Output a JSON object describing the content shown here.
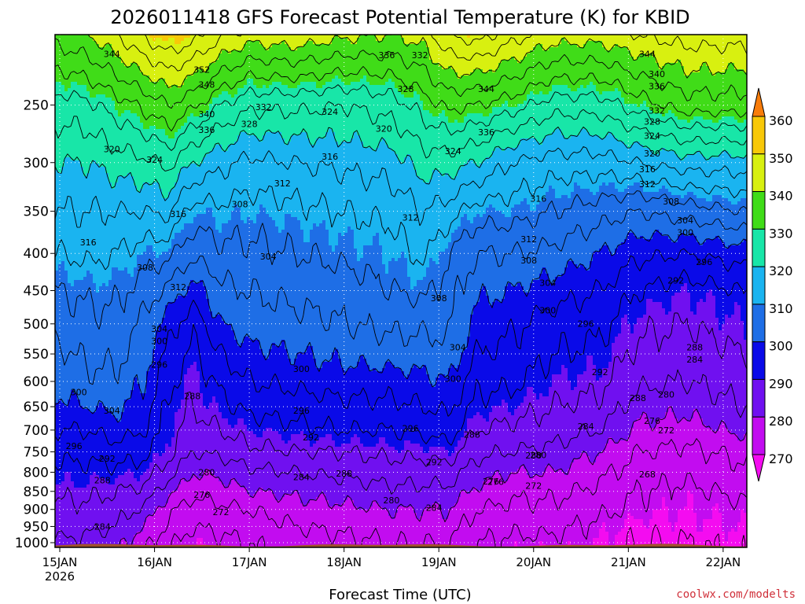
{
  "chart_data": {
    "type": "heatmap",
    "title": "2026011418 GFS Forecast Potential Temperature (K) for KBID",
    "xlabel": "Forecast Time (UTC)",
    "ylabel": "",
    "credit": "coolwx.com/modelts",
    "x_ticks": [
      "15JAN",
      "16JAN",
      "17JAN",
      "18JAN",
      "19JAN",
      "20JAN",
      "21JAN",
      "22JAN"
    ],
    "x_tick_year": "2026",
    "x_range_days": [
      -0.05,
      7.25
    ],
    "y_scale": "log",
    "y_ticks": [
      "250",
      "300",
      "350",
      "400",
      "450",
      "500",
      "550",
      "600",
      "650",
      "700",
      "750",
      "800",
      "850",
      "900",
      "950",
      "1000"
    ],
    "y_range_hpa": [
      1015,
      200
    ],
    "grid": "dotted",
    "colorbar": {
      "levels": [
        270,
        280,
        290,
        300,
        310,
        320,
        330,
        340,
        350,
        360
      ],
      "tick_labels": [
        "360",
        "350",
        "340",
        "330",
        "320",
        "310",
        "300",
        "290",
        "280",
        "270"
      ],
      "bands": [
        {
          "min": 260,
          "max": 270,
          "color": "#f40cf0"
        },
        {
          "min": 270,
          "max": 280,
          "color": "#c20cf0"
        },
        {
          "min": 280,
          "max": 290,
          "color": "#7010f0"
        },
        {
          "min": 290,
          "max": 300,
          "color": "#0a0ae8"
        },
        {
          "min": 300,
          "max": 310,
          "color": "#1e6ee6"
        },
        {
          "min": 310,
          "max": 320,
          "color": "#1ab4f0"
        },
        {
          "min": 320,
          "max": 330,
          "color": "#18e6a8"
        },
        {
          "min": 330,
          "max": 340,
          "color": "#40dc18"
        },
        {
          "min": 340,
          "max": 350,
          "color": "#d8f010"
        },
        {
          "min": 350,
          "max": 360,
          "color": "#f8c808"
        },
        {
          "min": 360,
          "max": 370,
          "color": "#f87c0a"
        }
      ]
    },
    "ground_color": "#a0522d",
    "theta_profile_levels_hpa": [
      1000,
      950,
      900,
      850,
      800,
      750,
      700,
      650,
      600,
      550,
      500,
      450,
      400,
      350,
      300,
      250,
      200
    ],
    "theta_profiles": [
      {
        "day": 0.0,
        "theta": [
          283,
          286,
          287,
          289,
          291,
          293,
          296,
          299,
          301,
          303,
          306,
          308,
          312,
          316,
          320,
          326,
          338
        ]
      },
      {
        "day": 0.3,
        "theta": [
          283,
          285,
          287,
          289,
          291,
          293,
          296,
          300,
          303,
          305,
          307,
          309,
          313,
          316,
          320,
          327,
          340
        ]
      },
      {
        "day": 0.6,
        "theta": [
          281,
          284,
          286,
          288,
          291,
          294,
          298,
          301,
          303,
          305,
          307,
          309,
          312,
          316,
          322,
          330,
          344
        ]
      },
      {
        "day": 0.9,
        "theta": [
          277,
          280,
          283,
          287,
          290,
          293,
          296,
          298,
          300,
          301,
          303,
          306,
          310,
          316,
          323,
          333,
          349
        ]
      },
      {
        "day": 1.15,
        "theta": [
          273,
          275,
          277,
          281,
          286,
          289,
          290,
          291,
          293,
          295,
          298,
          303,
          309,
          317,
          325,
          336,
          352
        ]
      },
      {
        "day": 1.4,
        "theta": [
          270,
          272,
          274,
          277,
          280,
          284,
          286,
          288,
          289,
          291,
          293,
          298,
          305,
          310,
          320,
          333,
          350
        ]
      },
      {
        "day": 1.7,
        "theta": [
          271,
          273,
          275,
          278,
          281,
          285,
          288,
          291,
          293,
          296,
          300,
          303,
          307,
          311,
          317,
          328,
          345
        ]
      },
      {
        "day": 2.0,
        "theta": [
          272,
          274,
          276,
          280,
          283,
          287,
          290,
          293,
          296,
          299,
          302,
          304,
          307,
          310,
          315,
          325,
          342
        ]
      },
      {
        "day": 2.5,
        "theta": [
          274,
          276,
          278,
          281,
          284,
          288,
          291,
          294,
          297,
          300,
          303,
          305,
          308,
          311,
          316,
          325,
          343
        ]
      },
      {
        "day": 3.0,
        "theta": [
          275,
          277,
          279,
          282,
          285,
          288,
          292,
          295,
          298,
          301,
          304,
          306,
          309,
          312,
          317,
          324,
          341
        ]
      },
      {
        "day": 3.5,
        "theta": [
          276,
          278,
          280,
          283,
          286,
          289,
          292,
          295,
          298,
          302,
          305,
          308,
          310,
          313,
          318,
          326,
          340
        ]
      },
      {
        "day": 3.85,
        "theta": [
          276,
          278,
          280,
          283,
          286,
          289,
          293,
          296,
          299,
          302,
          305,
          309,
          313,
          316,
          322,
          330,
          342
        ]
      },
      {
        "day": 4.1,
        "theta": [
          276,
          278,
          280,
          283,
          286,
          290,
          294,
          297,
          300,
          303,
          305,
          306,
          308,
          314,
          322,
          333,
          348
        ]
      },
      {
        "day": 4.4,
        "theta": [
          272,
          274,
          276,
          279,
          282,
          285,
          288,
          291,
          293,
          296,
          298,
          301,
          304,
          310,
          320,
          332,
          350
        ]
      },
      {
        "day": 4.75,
        "theta": [
          271,
          273,
          275,
          277,
          280,
          284,
          287,
          290,
          293,
          295,
          297,
          300,
          304,
          310,
          316,
          330,
          346
        ]
      },
      {
        "day": 5.2,
        "theta": [
          271,
          273,
          275,
          277,
          280,
          283,
          286,
          288,
          290,
          292,
          294,
          298,
          303,
          308,
          314,
          326,
          342
        ]
      },
      {
        "day": 5.7,
        "theta": [
          270,
          271,
          273,
          275,
          277,
          280,
          284,
          287,
          289,
          291,
          293,
          296,
          300,
          306,
          314,
          326,
          342
        ]
      },
      {
        "day": 6.1,
        "theta": [
          268,
          269,
          271,
          272,
          274,
          276,
          279,
          282,
          285,
          287,
          289,
          292,
          297,
          304,
          316,
          330,
          344
        ]
      },
      {
        "day": 6.6,
        "theta": [
          268,
          269,
          270,
          271,
          273,
          275,
          278,
          281,
          284,
          286,
          288,
          290,
          296,
          306,
          318,
          334,
          346
        ]
      },
      {
        "day": 7.2,
        "theta": [
          269,
          270,
          271,
          273,
          275,
          277,
          281,
          284,
          286,
          288,
          290,
          292,
          298,
          308,
          318,
          334,
          346
        ]
      }
    ],
    "contour_labels": [
      {
        "text": "344",
        "day": 0.55,
        "hpa": 213
      },
      {
        "text": "352",
        "day": 1.5,
        "hpa": 224
      },
      {
        "text": "348",
        "day": 1.55,
        "hpa": 235
      },
      {
        "text": "340",
        "day": 1.55,
        "hpa": 258
      },
      {
        "text": "336",
        "day": 1.55,
        "hpa": 271
      },
      {
        "text": "332",
        "day": 2.15,
        "hpa": 252
      },
      {
        "text": "328",
        "day": 2.0,
        "hpa": 266
      },
      {
        "text": "324",
        "day": 2.85,
        "hpa": 256
      },
      {
        "text": "336",
        "day": 3.45,
        "hpa": 214
      },
      {
        "text": "332",
        "day": 3.8,
        "hpa": 214
      },
      {
        "text": "328",
        "day": 3.65,
        "hpa": 238
      },
      {
        "text": "320",
        "day": 3.42,
        "hpa": 270
      },
      {
        "text": "316",
        "day": 2.85,
        "hpa": 295
      },
      {
        "text": "312",
        "day": 2.35,
        "hpa": 321
      },
      {
        "text": "308",
        "day": 1.9,
        "hpa": 343
      },
      {
        "text": "304",
        "day": 2.2,
        "hpa": 405
      },
      {
        "text": "312",
        "day": 3.7,
        "hpa": 358
      },
      {
        "text": "344",
        "day": 4.5,
        "hpa": 238
      },
      {
        "text": "336",
        "day": 4.5,
        "hpa": 273
      },
      {
        "text": "324",
        "day": 4.15,
        "hpa": 290
      },
      {
        "text": "316",
        "day": 5.05,
        "hpa": 337
      },
      {
        "text": "312",
        "day": 4.95,
        "hpa": 383
      },
      {
        "text": "308",
        "day": 4.95,
        "hpa": 410
      },
      {
        "text": "304",
        "day": 5.15,
        "hpa": 440
      },
      {
        "text": "300",
        "day": 5.15,
        "hpa": 480
      },
      {
        "text": "296",
        "day": 5.55,
        "hpa": 501
      },
      {
        "text": "292",
        "day": 5.7,
        "hpa": 584
      },
      {
        "text": "288",
        "day": 6.1,
        "hpa": 634
      },
      {
        "text": "284",
        "day": 5.55,
        "hpa": 693
      },
      {
        "text": "280",
        "day": 5.05,
        "hpa": 759
      },
      {
        "text": "276",
        "day": 4.55,
        "hpa": 825
      },
      {
        "text": "272",
        "day": 5.0,
        "hpa": 837
      },
      {
        "text": "268",
        "day": 6.2,
        "hpa": 807
      },
      {
        "text": "280",
        "day": 6.4,
        "hpa": 627
      },
      {
        "text": "276",
        "day": 6.25,
        "hpa": 681
      },
      {
        "text": "272",
        "day": 6.4,
        "hpa": 702
      },
      {
        "text": "284",
        "day": 6.7,
        "hpa": 561
      },
      {
        "text": "288",
        "day": 6.7,
        "hpa": 540
      },
      {
        "text": "292",
        "day": 6.5,
        "hpa": 437
      },
      {
        "text": "296",
        "day": 6.8,
        "hpa": 412
      },
      {
        "text": "300",
        "day": 6.6,
        "hpa": 375
      },
      {
        "text": "304",
        "day": 6.6,
        "hpa": 361
      },
      {
        "text": "308",
        "day": 6.45,
        "hpa": 340
      },
      {
        "text": "312",
        "day": 6.2,
        "hpa": 322
      },
      {
        "text": "316",
        "day": 6.2,
        "hpa": 307
      },
      {
        "text": "320",
        "day": 6.25,
        "hpa": 292
      },
      {
        "text": "324",
        "day": 6.25,
        "hpa": 276
      },
      {
        "text": "328",
        "day": 6.25,
        "hpa": 264
      },
      {
        "text": "332",
        "day": 6.3,
        "hpa": 255
      },
      {
        "text": "336",
        "day": 6.3,
        "hpa": 236
      },
      {
        "text": "340",
        "day": 6.3,
        "hpa": 227
      },
      {
        "text": "344",
        "day": 6.2,
        "hpa": 213
      },
      {
        "text": "320",
        "day": 0.55,
        "hpa": 288
      },
      {
        "text": "324",
        "day": 1.0,
        "hpa": 298
      },
      {
        "text": "316",
        "day": 1.25,
        "hpa": 354
      },
      {
        "text": "316",
        "day": 0.3,
        "hpa": 387
      },
      {
        "text": "308",
        "day": 0.9,
        "hpa": 419
      },
      {
        "text": "312",
        "day": 1.25,
        "hpa": 446
      },
      {
        "text": "304",
        "day": 1.05,
        "hpa": 509
      },
      {
        "text": "300",
        "day": 1.05,
        "hpa": 529
      },
      {
        "text": "296",
        "day": 1.05,
        "hpa": 570
      },
      {
        "text": "300",
        "day": 0.2,
        "hpa": 622
      },
      {
        "text": "304",
        "day": 0.55,
        "hpa": 660
      },
      {
        "text": "296",
        "day": 0.15,
        "hpa": 738
      },
      {
        "text": "292",
        "day": 0.5,
        "hpa": 768
      },
      {
        "text": "288",
        "day": 0.45,
        "hpa": 822
      },
      {
        "text": "284",
        "day": 0.45,
        "hpa": 952
      },
      {
        "text": "288",
        "day": 1.4,
        "hpa": 630
      },
      {
        "text": "280",
        "day": 1.55,
        "hpa": 802
      },
      {
        "text": "276",
        "day": 1.5,
        "hpa": 861
      },
      {
        "text": "272",
        "day": 1.7,
        "hpa": 910
      },
      {
        "text": "300",
        "day": 2.55,
        "hpa": 578
      },
      {
        "text": "296",
        "day": 2.55,
        "hpa": 660
      },
      {
        "text": "292",
        "day": 2.65,
        "hpa": 718
      },
      {
        "text": "284",
        "day": 2.55,
        "hpa": 814
      },
      {
        "text": "288",
        "day": 3.0,
        "hpa": 805
      },
      {
        "text": "280",
        "day": 3.5,
        "hpa": 876
      },
      {
        "text": "296",
        "day": 3.7,
        "hpa": 698
      },
      {
        "text": "292",
        "day": 3.95,
        "hpa": 777
      },
      {
        "text": "284",
        "day": 3.95,
        "hpa": 897
      },
      {
        "text": "308",
        "day": 4.0,
        "hpa": 462
      },
      {
        "text": "304",
        "day": 4.2,
        "hpa": 540
      },
      {
        "text": "300",
        "day": 4.15,
        "hpa": 596
      },
      {
        "text": "288",
        "day": 4.35,
        "hpa": 712
      },
      {
        "text": "276",
        "day": 4.6,
        "hpa": 826
      },
      {
        "text": "280",
        "day": 5.0,
        "hpa": 760
      }
    ]
  }
}
